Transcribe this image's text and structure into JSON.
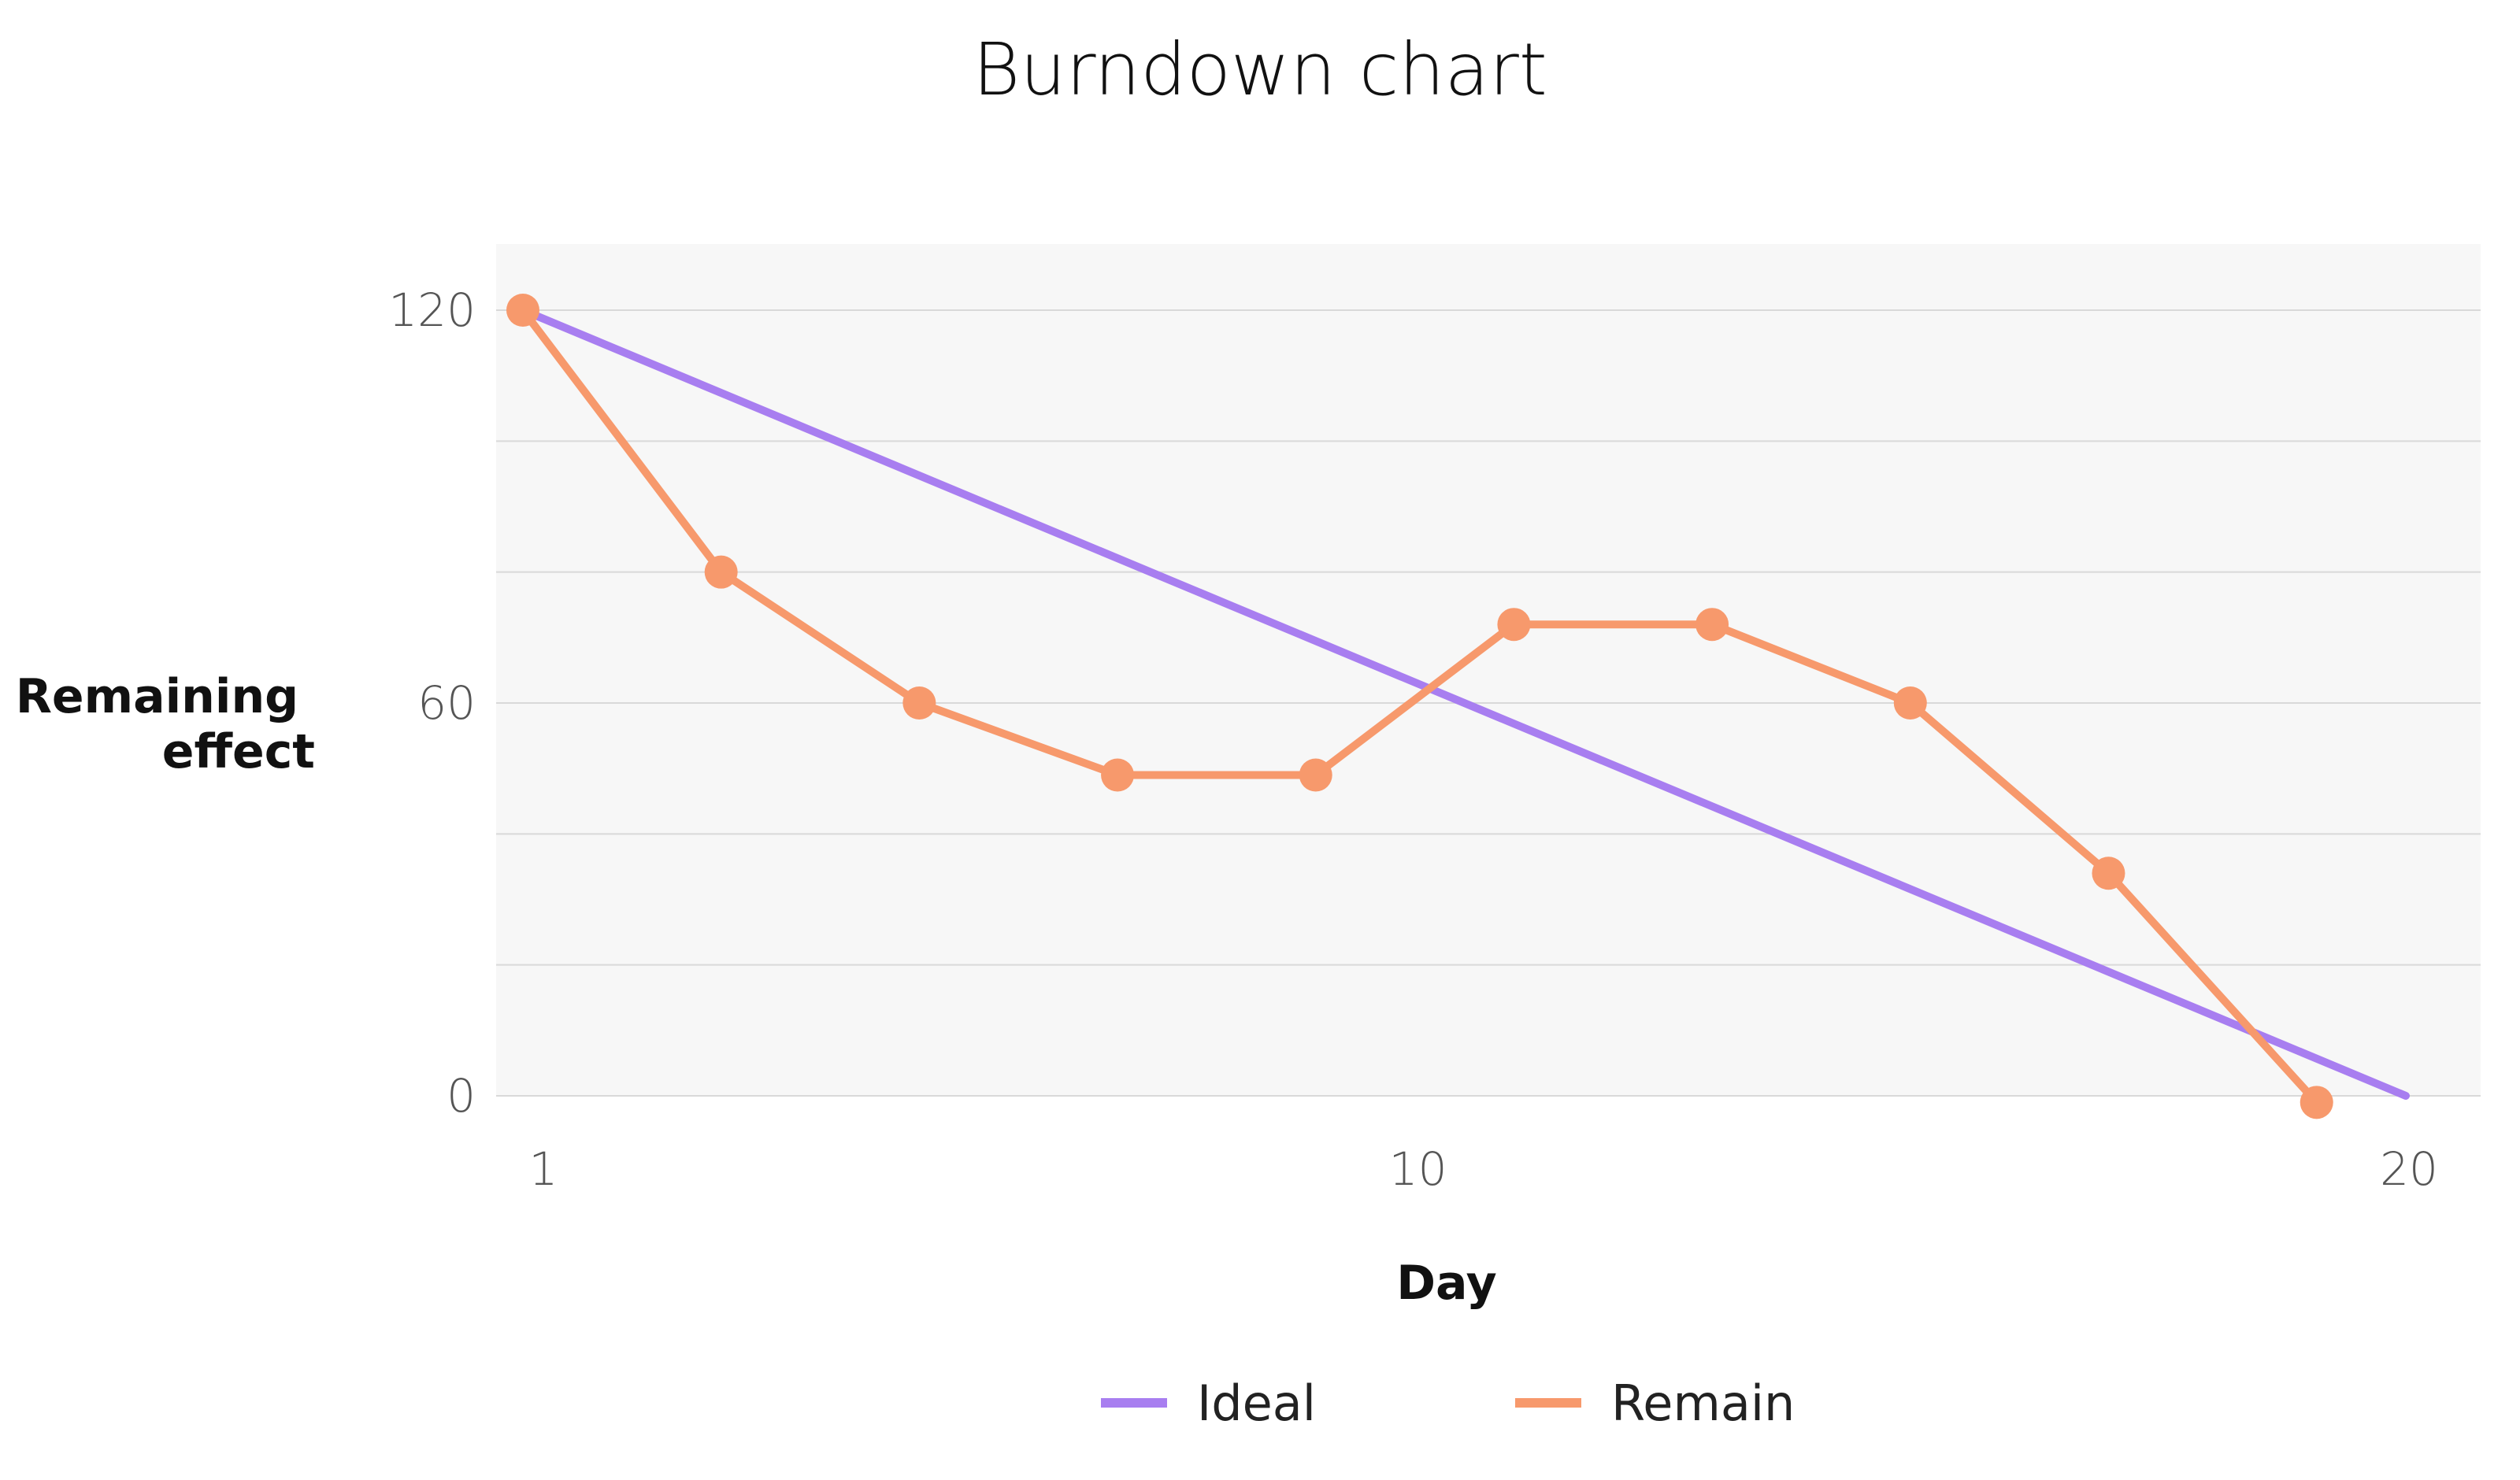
{
  "chart_data": {
    "type": "line",
    "title": "Burndown chart",
    "xlabel": "Day",
    "ylabel_lines": [
      "Remaining",
      "effect"
    ],
    "xlim": [
      1,
      20
    ],
    "ylim": [
      0,
      120
    ],
    "x_ticks": [
      1,
      10,
      20
    ],
    "y_ticks": [
      0,
      60,
      120
    ],
    "grid": true,
    "legend_position": "bottom-center",
    "series": [
      {
        "name": "Ideal",
        "color": "#a87ef0",
        "markers": false,
        "x": [
          1,
          20
        ],
        "y": [
          120,
          0
        ]
      },
      {
        "name": "Remain",
        "color": "#f7996c",
        "markers": true,
        "x": [
          1,
          3,
          5,
          7,
          9,
          11,
          13,
          15,
          17,
          19.1
        ],
        "y": [
          120,
          80,
          60,
          49,
          49,
          72,
          72,
          60,
          34,
          -1
        ]
      }
    ]
  },
  "colors": {
    "plot_background": "#f7f7f7",
    "grid": "#d9d9d9"
  }
}
